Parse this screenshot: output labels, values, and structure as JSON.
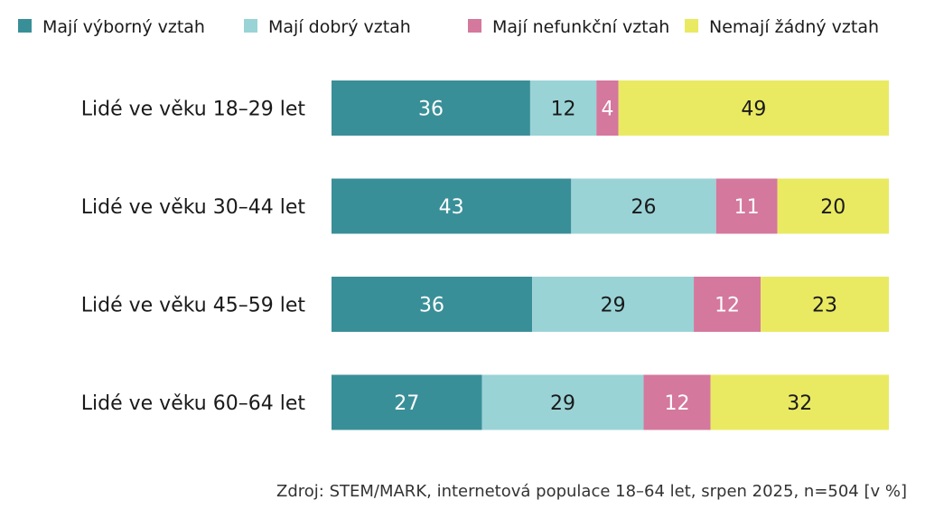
{
  "chart_data": {
    "type": "bar",
    "orientation": "horizontal",
    "stacked": true,
    "title": "",
    "xlabel": "",
    "ylabel": "",
    "xlim": [
      0,
      100
    ],
    "grid": false,
    "legend_position": "top",
    "categories": [
      "Lidé ve věku 18–29 let",
      "Lidé ve věku 30–44 let",
      "Lidé ve věku 45–59 let",
      "Lidé ve věku 60–64 let"
    ],
    "series": [
      {
        "name": "Mají výborný vztah",
        "color": "#398f98",
        "label_color": "#ffffff",
        "values": [
          36,
          43,
          36,
          27
        ]
      },
      {
        "name": "Mají dobrý vztah",
        "color": "#9ad3d6",
        "label_color": "#1a1a1a",
        "values": [
          12,
          26,
          29,
          29
        ]
      },
      {
        "name": "Mají nefunkční vztah",
        "color": "#d4789d",
        "label_color": "#ffffff",
        "values": [
          4,
          11,
          12,
          12
        ]
      },
      {
        "name": "Nemají žádný vztah",
        "color": "#e9ea62",
        "label_color": "#1a1a1a",
        "values": [
          49,
          20,
          23,
          32
        ]
      }
    ],
    "source": "Zdroj: STEM/MARK, internetová populace 18–64 let, srpen 2025, n=504 [v %]"
  }
}
